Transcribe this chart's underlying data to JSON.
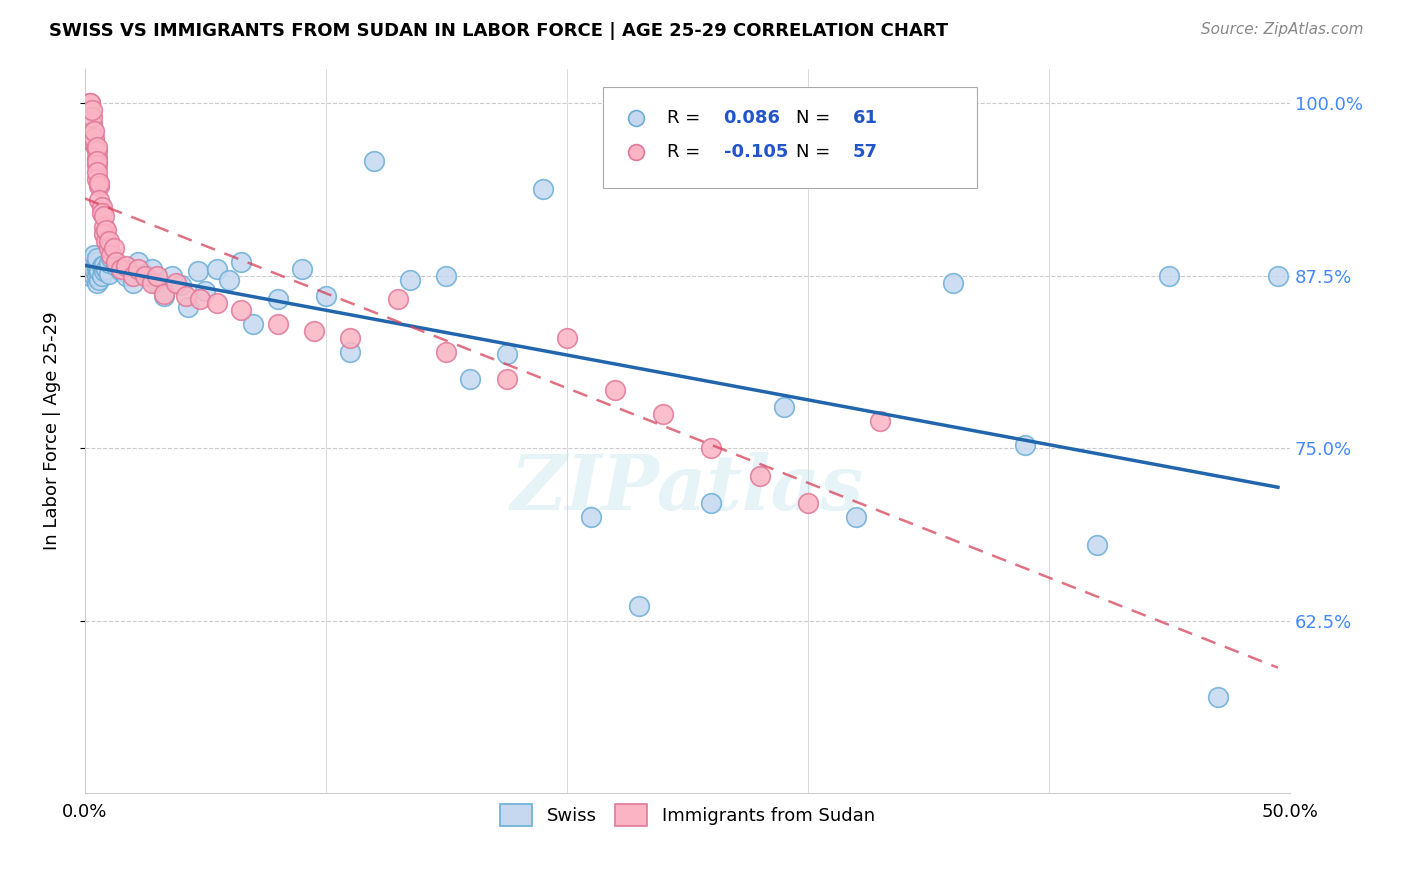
{
  "title": "SWISS VS IMMIGRANTS FROM SUDAN IN LABOR FORCE | AGE 25-29 CORRELATION CHART",
  "source": "Source: ZipAtlas.com",
  "ylabel": "In Labor Force | Age 25-29",
  "xlim": [
    0.0,
    0.5
  ],
  "ylim": [
    0.5,
    1.025
  ],
  "ytick_vals": [
    0.625,
    0.75,
    0.875,
    1.0
  ],
  "ytick_labels": [
    "62.5%",
    "75.0%",
    "87.5%",
    "100.0%"
  ],
  "legend_R_swiss": "0.086",
  "legend_N_swiss": "61",
  "legend_R_sudan": "-0.105",
  "legend_N_sudan": "57",
  "swiss_color": "#c5d8f0",
  "swiss_edge": "#6baed6",
  "sudan_color": "#fbb4c4",
  "sudan_edge": "#e07898",
  "swiss_line_color": "#2166ac",
  "sudan_line_color": "#d6425a",
  "watermark": "ZIPatlas",
  "swiss_x": [
    0.002,
    0.003,
    0.003,
    0.004,
    0.004,
    0.004,
    0.005,
    0.005,
    0.005,
    0.005,
    0.005,
    0.005,
    0.006,
    0.006,
    0.007,
    0.007,
    0.008,
    0.008,
    0.009,
    0.01,
    0.01,
    0.011,
    0.013,
    0.015,
    0.017,
    0.02,
    0.022,
    0.025,
    0.028,
    0.03,
    0.033,
    0.036,
    0.04,
    0.043,
    0.047,
    0.05,
    0.055,
    0.06,
    0.065,
    0.07,
    0.08,
    0.09,
    0.1,
    0.11,
    0.12,
    0.135,
    0.15,
    0.16,
    0.175,
    0.19,
    0.21,
    0.23,
    0.26,
    0.29,
    0.32,
    0.36,
    0.39,
    0.42,
    0.45,
    0.47,
    0.495
  ],
  "swiss_y": [
    0.875,
    0.88,
    0.885,
    0.875,
    0.88,
    0.89,
    0.87,
    0.875,
    0.88,
    0.882,
    0.885,
    0.888,
    0.872,
    0.878,
    0.875,
    0.882,
    0.878,
    0.883,
    0.88,
    0.876,
    0.884,
    0.888,
    0.882,
    0.878,
    0.875,
    0.87,
    0.885,
    0.876,
    0.88,
    0.87,
    0.86,
    0.875,
    0.868,
    0.852,
    0.878,
    0.864,
    0.88,
    0.872,
    0.885,
    0.84,
    0.858,
    0.88,
    0.86,
    0.82,
    0.958,
    0.872,
    0.875,
    0.8,
    0.818,
    0.938,
    0.7,
    0.636,
    0.71,
    0.78,
    0.7,
    0.87,
    0.752,
    0.68,
    0.875,
    0.57,
    0.875
  ],
  "sudan_x": [
    0.002,
    0.002,
    0.003,
    0.003,
    0.003,
    0.004,
    0.004,
    0.004,
    0.004,
    0.005,
    0.005,
    0.005,
    0.005,
    0.005,
    0.005,
    0.005,
    0.006,
    0.006,
    0.006,
    0.007,
    0.007,
    0.008,
    0.008,
    0.008,
    0.009,
    0.009,
    0.01,
    0.01,
    0.011,
    0.012,
    0.013,
    0.015,
    0.017,
    0.02,
    0.022,
    0.025,
    0.028,
    0.03,
    0.033,
    0.038,
    0.042,
    0.048,
    0.055,
    0.065,
    0.08,
    0.095,
    0.11,
    0.13,
    0.15,
    0.175,
    0.2,
    0.22,
    0.24,
    0.26,
    0.28,
    0.3,
    0.33
  ],
  "sudan_y": [
    1.0,
    1.0,
    0.985,
    0.99,
    0.995,
    0.97,
    0.972,
    0.975,
    0.98,
    0.96,
    0.965,
    0.968,
    0.955,
    0.958,
    0.945,
    0.95,
    0.94,
    0.942,
    0.93,
    0.925,
    0.92,
    0.91,
    0.918,
    0.905,
    0.9,
    0.908,
    0.895,
    0.9,
    0.89,
    0.895,
    0.885,
    0.88,
    0.882,
    0.875,
    0.88,
    0.875,
    0.87,
    0.875,
    0.862,
    0.87,
    0.86,
    0.858,
    0.855,
    0.85,
    0.84,
    0.835,
    0.83,
    0.858,
    0.82,
    0.8,
    0.83,
    0.792,
    0.775,
    0.75,
    0.73,
    0.71,
    0.77
  ]
}
